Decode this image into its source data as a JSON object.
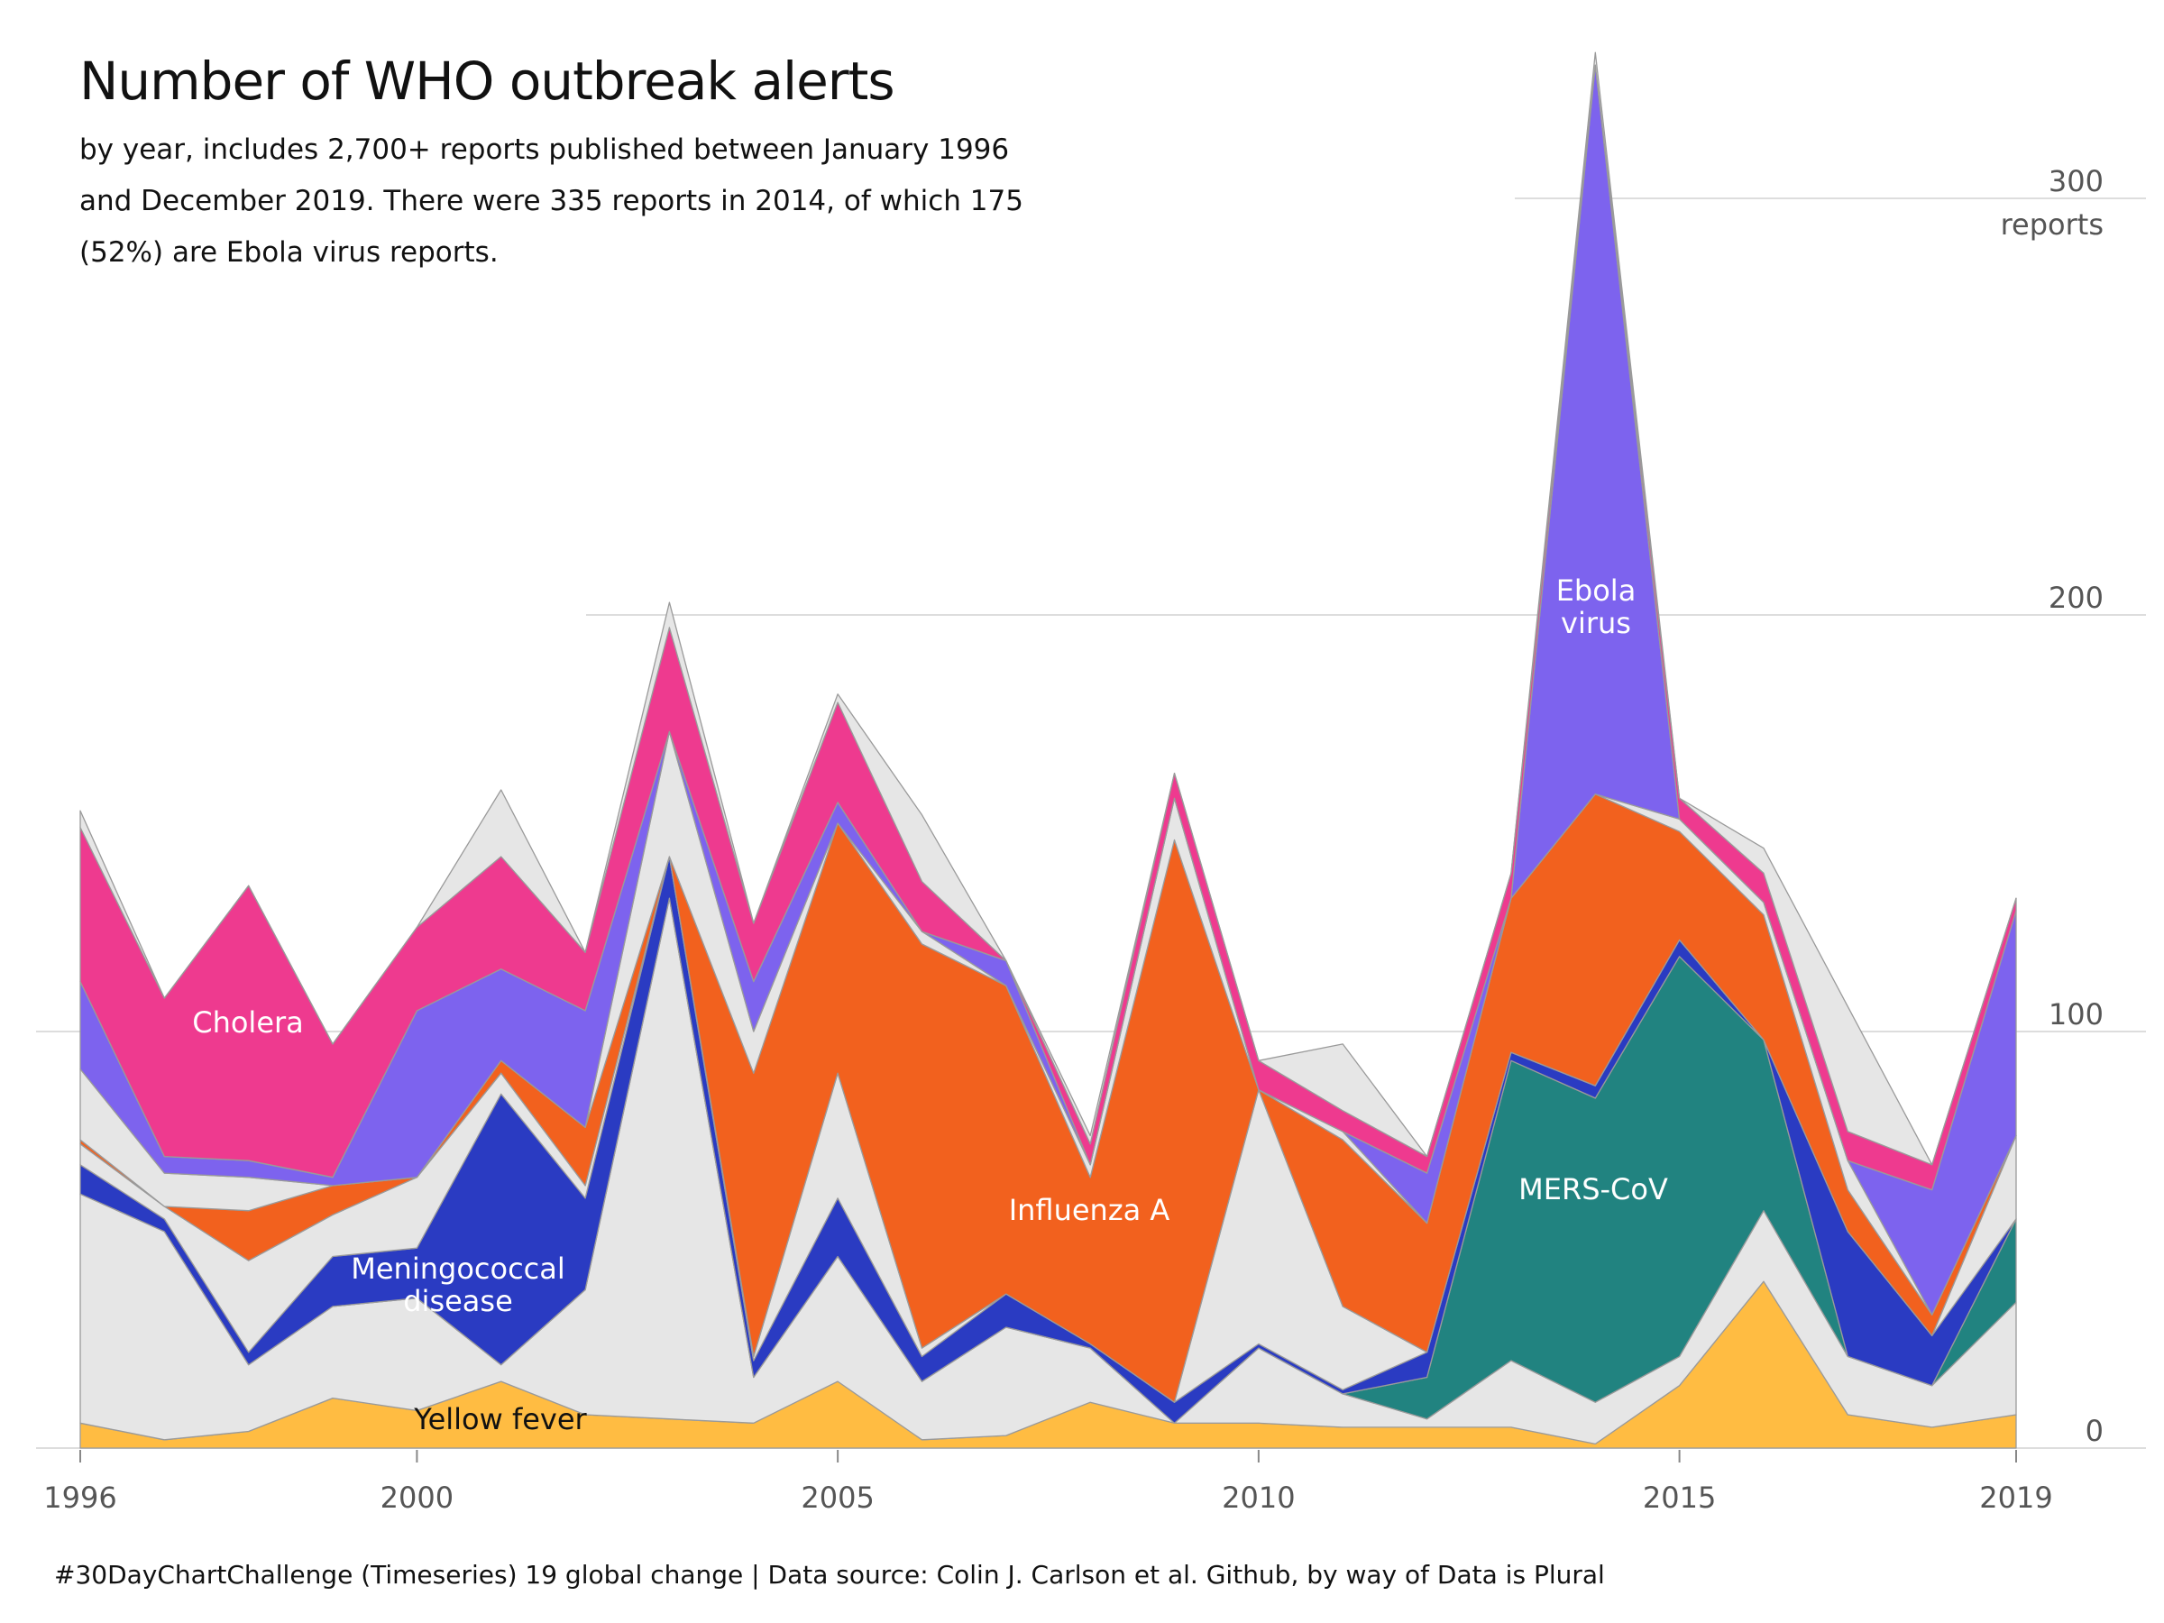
{
  "title": "Number of WHO outbreak alerts",
  "subtitle": "by year, includes 2,700+ reports published between January 1996 and December 2019. There were 335 reports in 2014, of which 175 (52%) are Ebola virus reports.",
  "caption": "#30DayChartChallenge (Timeseries) 19 global change  |  Data source: Colin J. Carlson et al. Github, by way of Data is Plural",
  "colors": {
    "yellow_fever": "#FFBC42",
    "meningococcal": "#2A3BC2",
    "influenza": "#F2611E",
    "mers": "#218380",
    "ebola": "#7D63EE",
    "cholera": "#EE3A8F",
    "other": "#E6E6E6",
    "border": "#9a9a9a"
  },
  "chart_data": {
    "type": "area",
    "x": [
      1996,
      1997,
      1998,
      1999,
      2000,
      2001,
      2002,
      2003,
      2004,
      2005,
      2006,
      2007,
      2008,
      2009,
      2010,
      2011,
      2012,
      2013,
      2014,
      2015,
      2016,
      2017,
      2018,
      2019
    ],
    "x_ticks": [
      "1996",
      "2000",
      "2005",
      "2010",
      "2015",
      "2019"
    ],
    "y_ticks": [
      "0",
      "100",
      "200",
      "300"
    ],
    "y_unit": "reports",
    "ylim": [
      0,
      335
    ],
    "stacking_order_bottom_to_top": [
      "Yellow fever",
      "other_low",
      "MERS-CoV",
      "Meningococcal disease",
      "other_mid",
      "Influenza A",
      "other_up",
      "Ebola virus",
      "Cholera",
      "other_top"
    ],
    "series": [
      {
        "name": "Yellow fever",
        "key": "yellow_fever",
        "values": [
          6,
          2,
          4,
          12,
          9,
          16,
          8,
          7,
          6,
          16,
          2,
          3,
          11,
          6,
          6,
          5,
          5,
          5,
          1,
          15,
          40,
          8,
          5,
          8
        ]
      },
      {
        "name": "other_low",
        "key": "other",
        "values": [
          55,
          50,
          16,
          22,
          27,
          4,
          30,
          125,
          11,
          30,
          14,
          26,
          13,
          0,
          18,
          8,
          2,
          16,
          10,
          7,
          17,
          14,
          10,
          27
        ]
      },
      {
        "name": "MERS-CoV",
        "key": "mers",
        "values": [
          0,
          0,
          0,
          0,
          0,
          0,
          0,
          0,
          0,
          0,
          0,
          0,
          0,
          0,
          0,
          0,
          10,
          72,
          73,
          96,
          41,
          0,
          0,
          20
        ]
      },
      {
        "name": "Meningococcal disease",
        "key": "meningococcal",
        "values": [
          7,
          3,
          3,
          12,
          12,
          65,
          22,
          10,
          4,
          14,
          6,
          8,
          1,
          5,
          1,
          1,
          6,
          2,
          3,
          4,
          0,
          30,
          12,
          0
        ]
      },
      {
        "name": "other_mid",
        "key": "other",
        "values": [
          5,
          3,
          22,
          10,
          17,
          5,
          3,
          0,
          1,
          30,
          2,
          0,
          0,
          0,
          61,
          20,
          0,
          0,
          0,
          0,
          0,
          0,
          0,
          20
        ]
      },
      {
        "name": "Influenza A",
        "key": "influenza",
        "values": [
          1,
          0,
          12,
          7,
          0,
          3,
          14,
          0,
          68,
          60,
          97,
          74,
          40,
          135,
          0,
          40,
          31,
          37,
          70,
          26,
          30,
          10,
          5,
          0
        ]
      },
      {
        "name": "other_up",
        "key": "other",
        "values": [
          17,
          8,
          8,
          0,
          0,
          0,
          0,
          30,
          10,
          0,
          3,
          0,
          3,
          10,
          0,
          2,
          0,
          0,
          0,
          3,
          3,
          7,
          0,
          0
        ]
      },
      {
        "name": "Ebola virus",
        "key": "ebola",
        "values": [
          21,
          4,
          4,
          2,
          40,
          22,
          28,
          0,
          12,
          5,
          0,
          6,
          0,
          0,
          0,
          0,
          12,
          0,
          175,
          0,
          0,
          0,
          30,
          54
        ]
      },
      {
        "name": "Cholera",
        "key": "cholera",
        "values": [
          37,
          38,
          66,
          32,
          20,
          27,
          14,
          25,
          14,
          24,
          12,
          0,
          5,
          6,
          7,
          5,
          4,
          6,
          0,
          5,
          7,
          7,
          6,
          3
        ]
      },
      {
        "name": "other_top",
        "key": "other",
        "values": [
          4,
          0,
          0,
          0,
          0,
          16,
          0,
          6,
          0,
          2,
          16,
          0,
          2,
          0,
          0,
          16,
          0,
          0,
          3,
          0,
          6,
          30,
          0,
          0
        ]
      }
    ],
    "annotations": [
      {
        "label": "Cholera",
        "color": "#ffffff"
      },
      {
        "label": "Meningococcal\ndisease",
        "color": "#ffffff"
      },
      {
        "label": "Yellow fever",
        "color": "#111111"
      },
      {
        "label": "Influenza A",
        "color": "#ffffff"
      },
      {
        "label": "MERS-CoV",
        "color": "#ffffff"
      },
      {
        "label": "Ebola\nvirus",
        "color": "#ffffff"
      }
    ]
  }
}
